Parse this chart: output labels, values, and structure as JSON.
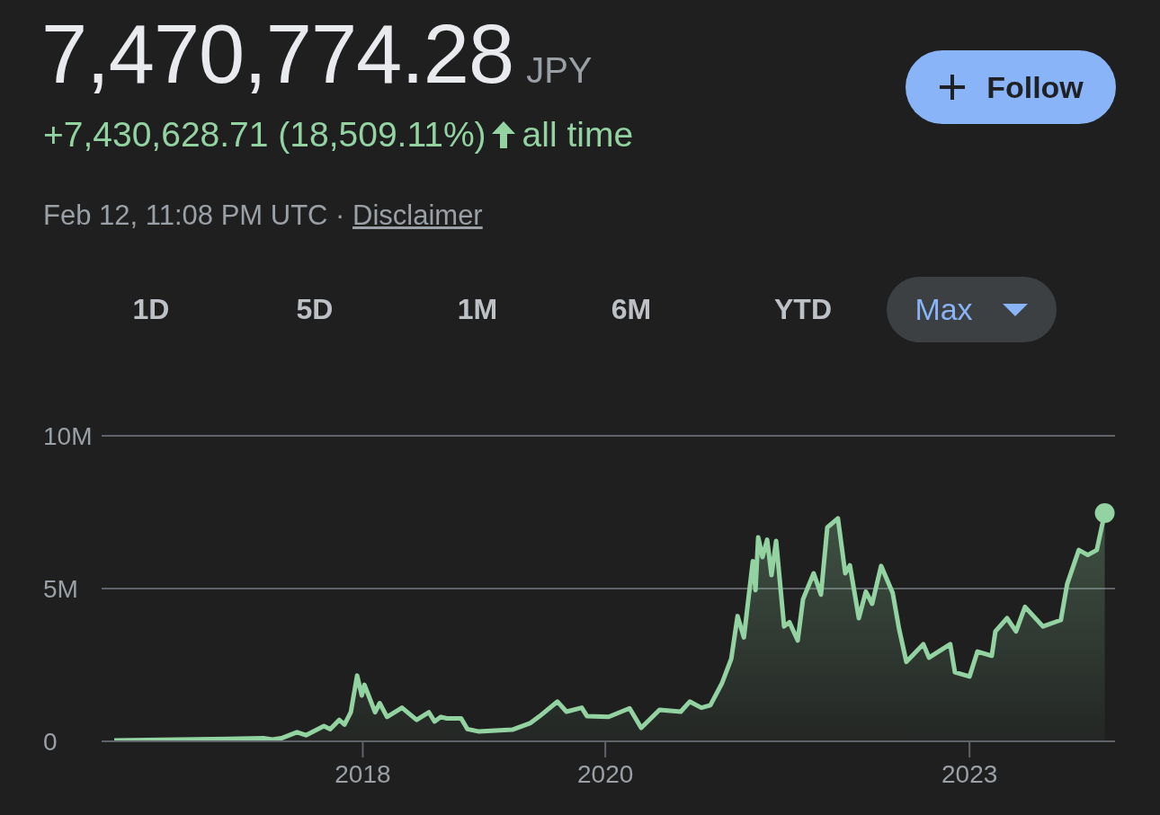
{
  "chart_data": {
    "type": "area",
    "title": "7,470,774.28",
    "annotations": [
      "JPY",
      "+7,430,628.71 (18,509.11%)",
      "all time",
      "Feb 12, 11:08 PM UTC ·",
      "Disclaimer",
      "Follow",
      "1D",
      "5D",
      "1M",
      "6M",
      "YTD",
      "Max"
    ],
    "x": [
      "2015-12-15",
      "2016-07-01",
      "2017-03-08",
      "2017-04-04",
      "2017-05-01",
      "2017-06-17",
      "2017-07-14",
      "2017-09-06",
      "2017-09-25",
      "2017-10-22",
      "2017-11-07",
      "2017-11-26",
      "2017-12-15",
      "2017-12-29",
      "2018-01-06",
      "2018-02-07",
      "2018-02-21",
      "2018-03-15",
      "2018-04-29",
      "2018-06-12",
      "2018-07-19",
      "2018-08-05",
      "2018-08-24",
      "2018-09-11",
      "2018-10-24",
      "2018-11-12",
      "2018-12-17",
      "2019-03-27",
      "2019-05-21",
      "2019-06-17",
      "2019-08-10",
      "2019-09-06",
      "2019-10-22",
      "2019-11-07",
      "2020-01-11",
      "2020-03-14",
      "2020-04-18",
      "2020-06-12",
      "2020-08-15",
      "2020-09-11",
      "2020-10-16",
      "2020-11-12",
      "2020-12-17",
      "2021-01-14",
      "2021-02-02",
      "2021-02-21",
      "2021-03-20",
      "2021-03-28",
      "2021-04-05",
      "2021-04-18",
      "2021-05-02",
      "2021-05-15",
      "2021-05-29",
      "2021-06-22",
      "2021-07-08",
      "2021-08-02",
      "2021-08-18",
      "2021-09-19",
      "2021-10-11",
      "2021-10-30",
      "2021-12-01",
      "2021-12-23",
      "2022-01-06",
      "2022-02-02",
      "2022-02-23",
      "2022-03-14",
      "2022-04-10",
      "2022-05-15",
      "2022-06-03",
      "2022-06-25",
      "2022-08-15",
      "2022-09-01",
      "2022-11-04",
      "2022-11-18",
      "2023-01-01",
      "2023-01-25",
      "2023-03-09",
      "2023-03-20",
      "2023-04-24",
      "2023-05-21",
      "2023-06-17",
      "2023-08-10",
      "2023-10-03",
      "2023-10-22",
      "2023-11-26",
      "2023-12-23",
      "2024-01-19",
      "2024-02-12"
    ],
    "values": [
      30000,
      60000,
      100000,
      60000,
      100000,
      300000,
      200000,
      500000,
      400000,
      700000,
      550000,
      950000,
      2150000,
      1500000,
      1850000,
      950000,
      1250000,
      800000,
      1100000,
      700000,
      950000,
      650000,
      800000,
      750000,
      750000,
      400000,
      320000,
      380000,
      600000,
      820000,
      1300000,
      970000,
      1100000,
      820000,
      800000,
      1080000,
      440000,
      1030000,
      970000,
      1300000,
      1100000,
      1180000,
      1900000,
      2700000,
      4100000,
      3400000,
      5900000,
      4950000,
      6680000,
      6030000,
      6600000,
      5440000,
      6560000,
      3760000,
      3900000,
      3300000,
      4650000,
      5500000,
      4800000,
      7000000,
      7300000,
      5500000,
      5760000,
      4030000,
      4900000,
      4500000,
      5740000,
      4850000,
      3680000,
      2600000,
      3180000,
      2740000,
      3180000,
      2260000,
      2120000,
      2940000,
      2800000,
      3600000,
      4030000,
      3600000,
      4400000,
      3760000,
      3970000,
      5150000,
      6260000,
      6100000,
      6260000,
      7470000
    ],
    "color": "#93d3a2",
    "xlim": [
      "2015-11-07",
      "2024-03-14"
    ],
    "xticks": [
      {
        "value": "2018-01-01",
        "label": "2018"
      },
      {
        "value": "2020-01-01",
        "label": "2020"
      },
      {
        "value": "2023-01-01",
        "label": "2023"
      }
    ],
    "ylim": [
      0,
      10000000
    ],
    "yticks": [
      0,
      {
        "value": 5000000,
        "label": "5M"
      },
      {
        "value": 10000000,
        "label": "10M"
      }
    ],
    "grid": "y"
  }
}
